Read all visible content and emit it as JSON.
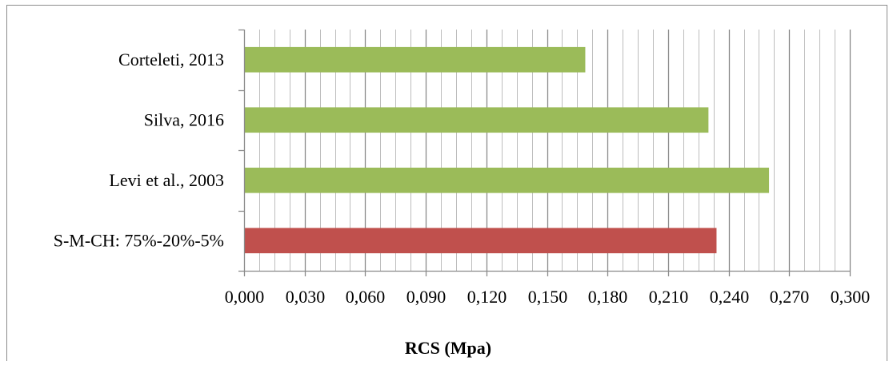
{
  "chart_data": {
    "type": "bar",
    "orientation": "horizontal",
    "categories": [
      "S-M-CH: 75%-20%-5%",
      "Levi et al., 2003",
      "Silva, 2016",
      "Corteleti, 2013"
    ],
    "values": [
      0.234,
      0.26,
      0.23,
      0.169
    ],
    "bar_colors": [
      "#C0504D",
      "#9BBB59",
      "#9BBB59",
      "#9BBB59"
    ],
    "xlabel": "RCS (Mpa)",
    "xlim": [
      0,
      0.3
    ],
    "xticks": [
      "0,000",
      "0,030",
      "0,060",
      "0,090",
      "0,120",
      "0,150",
      "0,180",
      "0,210",
      "0,240",
      "0,270",
      "0,300"
    ],
    "grid": "vertical, major and minor",
    "legend": "none"
  }
}
